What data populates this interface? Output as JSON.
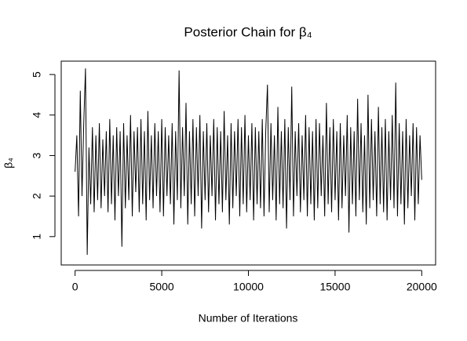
{
  "chart_data": {
    "type": "line",
    "title": "Posterior Chain for β₄",
    "x_label": "Number of Iterations",
    "y_label": "β₄",
    "x": [
      0,
      100,
      200,
      300,
      400,
      500,
      600,
      700,
      800,
      900,
      1000,
      1100,
      1200,
      1300,
      1400,
      1500,
      1600,
      1700,
      1800,
      1900,
      2000,
      2100,
      2200,
      2300,
      2400,
      2500,
      2600,
      2700,
      2800,
      2900,
      3000,
      3100,
      3200,
      3300,
      3400,
      3500,
      3600,
      3700,
      3800,
      3900,
      4000,
      4100,
      4200,
      4300,
      4400,
      4500,
      4600,
      4700,
      4800,
      4900,
      5000,
      5100,
      5200,
      5300,
      5400,
      5500,
      5600,
      5700,
      5800,
      5900,
      6000,
      6100,
      6200,
      6300,
      6400,
      6500,
      6600,
      6700,
      6800,
      6900,
      7000,
      7100,
      7200,
      7300,
      7400,
      7500,
      7600,
      7700,
      7800,
      7900,
      8000,
      8100,
      8200,
      8300,
      8400,
      8500,
      8600,
      8700,
      8800,
      8900,
      9000,
      9100,
      9200,
      9300,
      9400,
      9500,
      9600,
      9700,
      9800,
      9900,
      10000,
      10100,
      10200,
      10300,
      10400,
      10500,
      10600,
      10700,
      10800,
      10900,
      11000,
      11100,
      11200,
      11300,
      11400,
      11500,
      11600,
      11700,
      11800,
      11900,
      12000,
      12100,
      12200,
      12300,
      12400,
      12500,
      12600,
      12700,
      12800,
      12900,
      13000,
      13100,
      13200,
      13300,
      13400,
      13500,
      13600,
      13700,
      13800,
      13900,
      14000,
      14100,
      14200,
      14300,
      14400,
      14500,
      14600,
      14700,
      14800,
      14900,
      15000,
      15100,
      15200,
      15300,
      15400,
      15500,
      15600,
      15700,
      15800,
      15900,
      16000,
      16100,
      16200,
      16300,
      16400,
      16500,
      16600,
      16700,
      16800,
      16900,
      17000,
      17100,
      17200,
      17300,
      17400,
      17500,
      17600,
      17700,
      17800,
      17900,
      18000,
      18100,
      18200,
      18300,
      18400,
      18500,
      18600,
      18700,
      18800,
      18900,
      19000,
      19100,
      19200,
      19300,
      19400,
      19500,
      19600,
      19700,
      19800,
      19900,
      20000
    ],
    "series": [
      {
        "color": "#000000",
        "values": [
          2.6,
          3.5,
          1.5,
          4.6,
          2.0,
          3.8,
          5.15,
          0.55,
          3.2,
          1.8,
          3.7,
          1.6,
          3.5,
          1.9,
          3.8,
          1.7,
          3.4,
          2.0,
          3.6,
          1.6,
          3.9,
          1.8,
          3.5,
          1.4,
          3.7,
          2.0,
          3.6,
          0.75,
          3.8,
          1.7,
          3.5,
          1.9,
          4.0,
          1.5,
          3.6,
          2.1,
          3.7,
          1.6,
          3.9,
          1.8,
          3.6,
          1.4,
          4.1,
          1.9,
          3.5,
          1.7,
          3.8,
          2.0,
          3.6,
          1.6,
          3.9,
          1.5,
          3.7,
          2.0,
          3.5,
          1.8,
          3.8,
          1.3,
          3.6,
          1.9,
          5.1,
          1.7,
          3.7,
          2.0,
          4.3,
          1.3,
          3.6,
          1.8,
          3.9,
          1.5,
          3.7,
          2.0,
          4.0,
          1.2,
          3.6,
          1.9,
          3.8,
          1.6,
          3.5,
          2.0,
          3.9,
          1.4,
          3.7,
          1.8,
          3.6,
          1.6,
          4.1,
          1.9,
          3.5,
          1.3,
          3.8,
          1.7,
          3.6,
          2.0,
          3.9,
          1.5,
          3.7,
          1.8,
          4.0,
          1.6,
          3.5,
          1.9,
          3.8,
          1.4,
          3.7,
          1.8,
          3.6,
          1.7,
          3.9,
          1.5,
          3.6,
          4.75,
          1.6,
          3.8,
          1.9,
          3.5,
          1.4,
          4.2,
          1.8,
          3.6,
          1.7,
          3.9,
          1.2,
          3.7,
          1.9,
          4.7,
          1.5,
          3.6,
          2.0,
          3.8,
          1.6,
          3.5,
          1.9,
          4.0,
          1.5,
          3.7,
          1.8,
          3.6,
          1.4,
          3.9,
          1.7,
          3.8,
          2.0,
          3.5,
          1.5,
          4.3,
          1.8,
          3.7,
          1.6,
          3.9,
          1.9,
          3.6,
          1.4,
          3.8,
          1.7,
          3.5,
          2.0,
          4.0,
          1.1,
          3.7,
          1.8,
          3.6,
          1.5,
          4.4,
          1.9,
          3.8,
          1.6,
          3.5,
          1.3,
          4.5,
          1.7,
          3.9,
          1.9,
          3.6,
          1.5,
          4.2,
          1.8,
          3.7,
          1.6,
          3.9,
          1.4,
          3.6,
          1.9,
          4.0,
          1.7,
          4.8,
          1.5,
          3.8,
          1.8,
          3.6,
          1.3,
          3.9,
          1.7,
          3.5,
          2.0,
          3.8,
          1.4,
          3.7,
          1.8,
          3.5,
          2.4
        ]
      }
    ],
    "xlim": [
      -800,
      20800
    ],
    "ylim": [
      0.3,
      5.33
    ],
    "xticks": [
      0,
      5000,
      10000,
      15000,
      20000
    ],
    "yticks": [
      1,
      2,
      3,
      4,
      5
    ]
  }
}
